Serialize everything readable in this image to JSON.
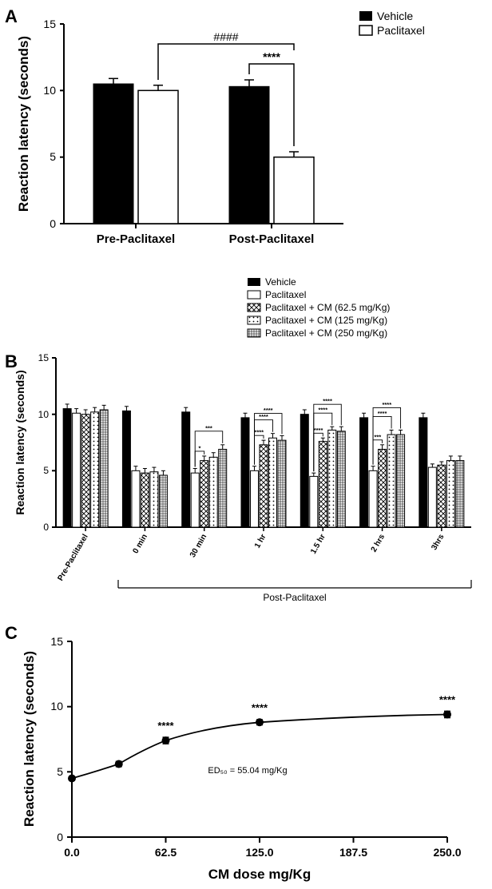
{
  "panelA": {
    "label": "A",
    "type": "bar",
    "ylabel": "Reaction latency (seconds)",
    "y_fontsize": 16,
    "categories": [
      "Pre-Paclitaxel",
      "Post-Paclitaxel"
    ],
    "cat_fontsize": 14,
    "legend": {
      "items": [
        {
          "label": "Vehicle",
          "fill": "#000000"
        },
        {
          "label": "Paclitaxel",
          "fill": "#ffffff",
          "stroke": "#000000"
        }
      ],
      "fontsize": 14
    },
    "ylim": [
      0,
      15
    ],
    "ytick_step": 5,
    "series": [
      {
        "name": "Vehicle",
        "fill": "#000000",
        "stroke": "#000000",
        "values": [
          {
            "y": 10.5,
            "err": 0.4
          },
          {
            "y": 10.3,
            "err": 0.5
          }
        ]
      },
      {
        "name": "Paclitaxel",
        "fill": "#ffffff",
        "stroke": "#000000",
        "values": [
          {
            "y": 10.0,
            "err": 0.4
          },
          {
            "y": 5.0,
            "err": 0.4
          }
        ]
      }
    ],
    "annotations": [
      {
        "text": "####",
        "type": "bracket",
        "from_group": 0,
        "from_bar": 1,
        "to_group": 1,
        "to_bar": 1,
        "y": 13.5
      },
      {
        "text": "****",
        "type": "bracket",
        "from_group": 1,
        "from_bar": 0,
        "to_group": 1,
        "to_bar": 1,
        "y": 12.0
      }
    ],
    "bar_width": 0.35,
    "background": "#ffffff",
    "axis_color": "#000000"
  },
  "panelB": {
    "label": "B",
    "type": "bar",
    "ylabel": "Reaction latency (seconds)",
    "y_fontsize": 14,
    "timepoints": [
      "Pre-Paclitaxel",
      "0 min",
      "30 min",
      "1 hr",
      "1.5 hr",
      "2 hrs",
      "3hrs"
    ],
    "cat_fontsize": 10,
    "xlabel_below": "Post-Paclitaxel",
    "legend": {
      "items": [
        {
          "label": "Vehicle",
          "fill": "#000000"
        },
        {
          "label": "Paclitaxel",
          "fill": "#ffffff",
          "stroke": "#000000"
        },
        {
          "label": "Paclitaxel + CM (62.5 mg/Kg)",
          "pattern": "crosshatch",
          "stroke": "#000000"
        },
        {
          "label": "Paclitaxel + CM (125 mg/Kg)",
          "pattern": "dots",
          "stroke": "#000000"
        },
        {
          "label": "Paclitaxel + CM (250 mg/Kg)",
          "pattern": "grid",
          "stroke": "#000000"
        }
      ],
      "fontsize": 12
    },
    "ylim": [
      0,
      15
    ],
    "ytick_step": 5,
    "series": [
      {
        "name": "Vehicle",
        "fill": "#000000",
        "values": [
          10.5,
          10.3,
          10.2,
          9.7,
          10.0,
          9.7,
          9.7
        ],
        "errs": [
          0.4,
          0.4,
          0.4,
          0.4,
          0.4,
          0.4,
          0.4
        ]
      },
      {
        "name": "Paclitaxel",
        "fill": "#ffffff",
        "values": [
          10.1,
          5.0,
          4.8,
          5.0,
          4.5,
          5.0,
          5.3
        ],
        "errs": [
          0.4,
          0.4,
          0.4,
          0.4,
          0.3,
          0.4,
          0.3
        ]
      },
      {
        "name": "CM62.5",
        "pattern": "crosshatch",
        "values": [
          10.0,
          4.8,
          5.9,
          7.3,
          7.6,
          6.9,
          5.5
        ],
        "errs": [
          0.4,
          0.4,
          0.4,
          0.4,
          0.3,
          0.4,
          0.3
        ]
      },
      {
        "name": "CM125",
        "pattern": "dots",
        "values": [
          10.2,
          4.9,
          6.2,
          7.9,
          8.6,
          8.2,
          5.9
        ],
        "errs": [
          0.4,
          0.4,
          0.4,
          0.4,
          0.3,
          0.4,
          0.4
        ]
      },
      {
        "name": "CM250",
        "pattern": "grid",
        "values": [
          10.4,
          4.6,
          6.9,
          7.7,
          8.5,
          8.2,
          5.9
        ],
        "errs": [
          0.4,
          0.4,
          0.4,
          0.4,
          0.4,
          0.4,
          0.4
        ]
      }
    ],
    "annotations_per_tp": {
      "30 min": [
        {
          "bar": 2,
          "text": "*"
        },
        {
          "bar": 4,
          "text": "***"
        }
      ],
      "1 hr": [
        {
          "bar": 2,
          "text": "****"
        },
        {
          "bar": 3,
          "text": "****"
        },
        {
          "bar": 4,
          "text": "****"
        }
      ],
      "1.5 hr": [
        {
          "bar": 2,
          "text": "****"
        },
        {
          "bar": 3,
          "text": "****"
        },
        {
          "bar": 4,
          "text": "****"
        }
      ],
      "2 hrs": [
        {
          "bar": 2,
          "text": "***"
        },
        {
          "bar": 3,
          "text": "****"
        },
        {
          "bar": 4,
          "text": "****"
        }
      ]
    },
    "bar_width": 0.15,
    "background": "#ffffff",
    "axis_color": "#000000"
  },
  "panelC": {
    "label": "C",
    "type": "scatter-line",
    "ylabel": "Reaction latency (seconds)",
    "xlabel": "CM dose mg/Kg",
    "y_fontsize": 16,
    "x_fontsize": 16,
    "xlim": [
      0,
      250
    ],
    "xtick_step": 62.5,
    "ylim": [
      0,
      15
    ],
    "ytick_step": 5,
    "points": [
      {
        "x": 0,
        "y": 4.5,
        "err": 0.15,
        "sig": ""
      },
      {
        "x": 31.25,
        "y": 5.6,
        "err": 0.2,
        "sig": ""
      },
      {
        "x": 62.5,
        "y": 7.4,
        "err": 0.25,
        "sig": "****"
      },
      {
        "x": 125,
        "y": 8.8,
        "err": 0.2,
        "sig": "****"
      },
      {
        "x": 250,
        "y": 9.4,
        "err": 0.25,
        "sig": "****"
      }
    ],
    "ed50_text": "ED₅₀ = 55.04 mg/Kg",
    "ed50_fontsize": 11,
    "marker_color": "#000000",
    "marker_size": 5,
    "line_color": "#000000",
    "background": "#ffffff",
    "axis_color": "#000000"
  }
}
